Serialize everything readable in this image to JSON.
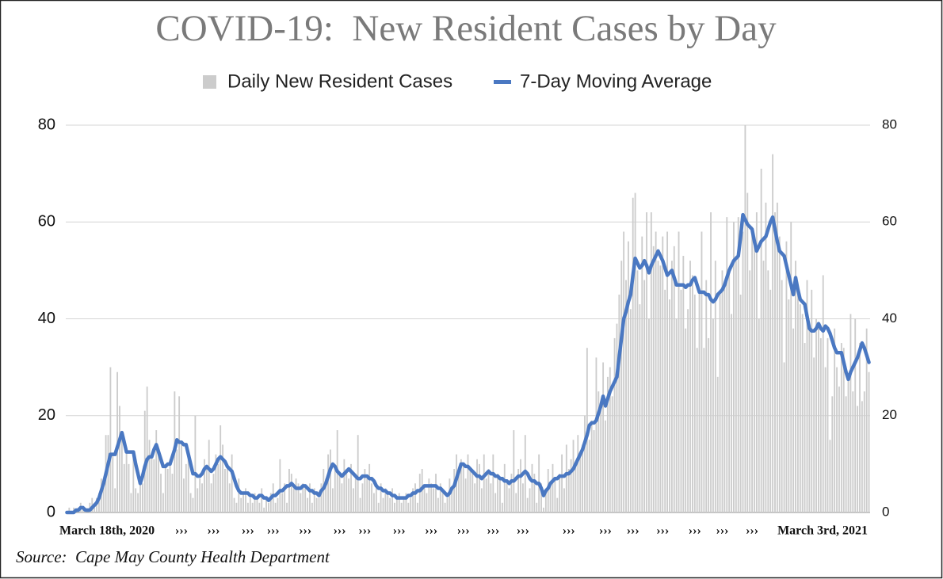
{
  "chart_data": {
    "type": "bar-line",
    "title": "COVID-19:  New Resident Cases by Day",
    "source": "Source:  Cape May County Health Department",
    "categories": [
      "March 18th, 2020",
      null,
      null,
      null,
      null,
      null,
      null,
      null,
      null,
      null,
      null,
      null,
      null,
      null,
      null,
      null,
      null,
      null,
      null,
      null,
      null,
      null,
      null,
      null,
      null,
      null,
      null,
      null,
      null,
      null,
      null,
      null,
      null,
      null,
      null,
      null,
      null,
      null,
      null,
      null,
      null,
      null,
      null,
      null,
      null,
      null,
      null,
      null,
      null,
      null,
      "›››",
      null,
      null,
      null,
      null,
      null,
      null,
      null,
      null,
      null,
      null,
      null,
      null,
      null,
      "›››",
      null,
      null,
      null,
      null,
      null,
      null,
      null,
      null,
      null,
      null,
      null,
      null,
      null,
      null,
      "›››",
      null,
      null,
      null,
      null,
      null,
      null,
      null,
      null,
      null,
      null,
      "›››",
      null,
      null,
      null,
      null,
      null,
      null,
      null,
      null,
      null,
      null,
      null,
      null,
      null,
      "›››",
      null,
      null,
      null,
      null,
      null,
      null,
      null,
      null,
      null,
      null,
      null,
      null,
      null,
      null,
      "›››",
      null,
      null,
      null,
      null,
      null,
      null,
      null,
      null,
      null,
      null,
      "›››",
      null,
      null,
      null,
      null,
      null,
      null,
      null,
      null,
      null,
      null,
      null,
      null,
      null,
      null,
      "›››",
      null,
      null,
      null,
      null,
      null,
      null,
      null,
      null,
      null,
      null,
      null,
      null,
      null,
      "›››",
      null,
      null,
      null,
      null,
      null,
      null,
      null,
      null,
      null,
      null,
      null,
      null,
      null,
      "›››",
      null,
      null,
      null,
      null,
      null,
      null,
      null,
      null,
      null,
      null,
      null,
      null,
      "›››",
      null,
      null,
      null,
      null,
      null,
      null,
      null,
      null,
      null,
      null,
      null,
      null,
      "›››",
      null,
      null,
      null,
      null,
      null,
      null,
      null,
      null,
      null,
      null,
      null,
      null,
      null,
      null,
      null,
      null,
      null,
      null,
      null,
      "›››",
      null,
      null,
      null,
      null,
      null,
      null,
      null,
      null,
      null,
      null,
      null,
      null,
      null,
      null,
      null,
      "›››",
      null,
      null,
      null,
      null,
      null,
      null,
      null,
      null,
      null,
      null,
      null,
      "›››",
      null,
      null,
      null,
      null,
      null,
      null,
      null,
      null,
      null,
      null,
      null,
      null,
      "›››",
      null,
      null,
      null,
      null,
      null,
      null,
      null,
      null,
      null,
      null,
      null,
      null,
      null,
      "›››",
      null,
      null,
      null,
      null,
      null,
      null,
      null,
      null,
      null,
      null,
      null,
      "›››",
      null,
      null,
      null,
      null,
      null,
      null,
      null,
      null,
      null,
      null,
      null,
      null,
      "›››",
      null,
      null,
      null,
      null,
      null,
      null,
      null,
      null,
      null,
      null,
      null,
      null,
      null,
      null,
      null,
      null,
      null,
      null,
      null,
      null,
      null,
      null,
      null,
      null,
      null,
      null,
      null,
      null,
      null,
      null,
      null,
      null,
      null,
      null,
      null,
      null,
      null,
      null,
      null,
      null,
      null,
      null,
      null,
      null,
      null,
      null,
      null,
      null,
      null,
      null,
      "March 3rd, 2021"
    ],
    "series": [
      {
        "name": "Daily New Resident Cases",
        "kind": "bar",
        "color": "#cccccc",
        "values": [
          0,
          1,
          0,
          1,
          0,
          0,
          2,
          1,
          1,
          0,
          2,
          3,
          1,
          3,
          4,
          7,
          6,
          16,
          16,
          30,
          12,
          5,
          29,
          22,
          15,
          10,
          13,
          10,
          4,
          12,
          5,
          4,
          7,
          6,
          21,
          26,
          15,
          12,
          11,
          17,
          13,
          8,
          4,
          10,
          9,
          11,
          8,
          25,
          13,
          24,
          14,
          7,
          10,
          12,
          4,
          3,
          20,
          5,
          7,
          6,
          11,
          9,
          15,
          6,
          8,
          12,
          10,
          18,
          14,
          9,
          10,
          6,
          12,
          3,
          2,
          7,
          3,
          4,
          5,
          2,
          3,
          2,
          4,
          3,
          2,
          5,
          1,
          3,
          2,
          4,
          6,
          2,
          3,
          11,
          4,
          6,
          2,
          9,
          8,
          5,
          7,
          6,
          4,
          6,
          5,
          3,
          6,
          2,
          5,
          3,
          3,
          6,
          9,
          7,
          12,
          13,
          5,
          9,
          17,
          8,
          6,
          11,
          9,
          7,
          10,
          5,
          8,
          16,
          3,
          6,
          9,
          7,
          10,
          6,
          4,
          5,
          2,
          6,
          3,
          5,
          4,
          3,
          5,
          2,
          3,
          4,
          2,
          3,
          4,
          2,
          3,
          5,
          6,
          2,
          8,
          9,
          5,
          4,
          7,
          6,
          5,
          8,
          3,
          6,
          4,
          2,
          3,
          7,
          5,
          9,
          12,
          8,
          11,
          10,
          7,
          12,
          9,
          8,
          6,
          11,
          10,
          5,
          12,
          7,
          9,
          6,
          12,
          4,
          8,
          7,
          2,
          10,
          6,
          5,
          8,
          17,
          4,
          9,
          11,
          6,
          16,
          3,
          5,
          10,
          8,
          2,
          12,
          6,
          1,
          4,
          9,
          6,
          10,
          7,
          3,
          8,
          12,
          5,
          14,
          9,
          11,
          15,
          10,
          16,
          12,
          14,
          20,
          34,
          15,
          19,
          17,
          32,
          25,
          22,
          31,
          19,
          28,
          30,
          24,
          36,
          39,
          45,
          52,
          58,
          48,
          56,
          42,
          65,
          66,
          50,
          43,
          57,
          48,
          62,
          40,
          62,
          55,
          58,
          52,
          51,
          57,
          46,
          58,
          44,
          52,
          55,
          40,
          58,
          46,
          53,
          38,
          42,
          52,
          49,
          45,
          34,
          46,
          58,
          34,
          48,
          36,
          62,
          40,
          52,
          28,
          45,
          50,
          47,
          61,
          50,
          41,
          60,
          52,
          61,
          45,
          58,
          80,
          66,
          50,
          59,
          55,
          62,
          40,
          71,
          52,
          64,
          50,
          46,
          74,
          62,
          64,
          57,
          48,
          31,
          56,
          44,
          60,
          38,
          52,
          46,
          43,
          41,
          35,
          48,
          39,
          46,
          32,
          40,
          38,
          36,
          49,
          30,
          36,
          15,
          24,
          38,
          30,
          26,
          35,
          34,
          24,
          28,
          41,
          25,
          40,
          22,
          35,
          23,
          25,
          38,
          29
        ]
      },
      {
        "name": "7-Day Moving Average",
        "kind": "line",
        "color": "#4a78c2",
        "values": [
          0,
          0,
          0,
          0,
          0.5,
          0.5,
          1,
          1,
          0.5,
          0.5,
          0.5,
          1,
          1.5,
          2,
          3,
          4.5,
          6,
          8,
          10,
          12,
          12,
          12,
          13.5,
          15,
          16.5,
          14.5,
          12.5,
          12.5,
          12.5,
          12.5,
          10,
          8,
          6,
          7.5,
          9.5,
          11,
          11.5,
          11.5,
          13,
          14,
          12.5,
          11,
          9.5,
          9.5,
          10,
          10,
          11.5,
          13,
          15,
          14.5,
          14.5,
          14,
          14,
          12,
          10,
          8,
          8,
          7.5,
          7.5,
          8,
          9,
          9.5,
          9,
          8.5,
          9,
          10,
          11,
          11.5,
          11,
          10.5,
          9.5,
          9,
          8.5,
          7,
          5.5,
          4.5,
          4,
          4,
          4,
          4,
          3.5,
          3.5,
          3,
          3,
          3.5,
          3.5,
          3,
          3,
          2.5,
          3,
          3.5,
          3.5,
          4,
          4.5,
          4.5,
          5,
          5.5,
          5.5,
          6,
          5.5,
          5,
          5,
          5,
          5.5,
          5.5,
          5,
          4.5,
          4.5,
          4,
          4,
          3.5,
          4.5,
          5,
          6,
          7.5,
          9,
          10,
          9.5,
          8.5,
          8,
          7.5,
          8,
          8.5,
          9,
          8.5,
          8,
          7.5,
          7,
          7,
          7.5,
          7.5,
          7.5,
          7,
          7,
          6.5,
          5.5,
          5,
          5,
          4.5,
          4.5,
          4,
          4,
          3.5,
          3.5,
          3,
          3,
          3,
          3,
          3,
          3.5,
          3.5,
          4,
          4,
          4.5,
          4.5,
          5,
          5.5,
          5.5,
          5.5,
          5.5,
          5.5,
          5.5,
          5,
          5,
          4.5,
          4,
          3.5,
          4,
          5,
          5.5,
          7,
          8.5,
          10,
          10,
          9.5,
          9.5,
          9,
          8.5,
          8,
          7.5,
          7.5,
          7,
          7.5,
          8,
          8.5,
          8,
          8,
          7.5,
          7.5,
          7,
          7,
          6.5,
          6.5,
          6,
          6.5,
          6.5,
          7,
          7.5,
          7.5,
          8,
          8.5,
          8,
          7,
          6.5,
          6.5,
          6,
          6,
          5,
          3.5,
          4.5,
          5,
          6,
          6.5,
          7,
          7,
          7.5,
          7.5,
          7.5,
          8,
          8,
          8.5,
          9,
          10,
          11,
          12,
          13,
          14.5,
          16,
          18,
          18.5,
          18.5,
          19,
          20.5,
          22,
          24,
          22,
          23.5,
          25,
          26,
          27,
          28,
          32,
          36,
          40,
          41.5,
          43.5,
          45,
          49,
          52.5,
          51.5,
          50.5,
          51,
          52,
          51,
          49.5,
          51,
          52,
          53,
          54,
          53,
          52,
          50.5,
          49,
          49.5,
          50,
          48.5,
          47,
          47,
          47,
          47,
          46.5,
          47,
          47,
          48,
          48.5,
          47,
          45.5,
          45.5,
          45.5,
          45,
          45,
          44,
          43.5,
          44,
          45,
          45.5,
          46,
          47,
          48.5,
          50,
          51,
          52,
          52.5,
          53,
          57,
          61.5,
          60.5,
          59.5,
          59,
          58.5,
          56,
          54,
          55,
          56,
          56.5,
          57,
          58.5,
          60,
          61,
          58.5,
          56,
          54,
          53.5,
          53,
          51,
          49,
          47,
          45,
          48.5,
          46,
          44,
          43.5,
          43,
          40.5,
          38,
          37.5,
          37.5,
          38,
          39,
          38,
          37.5,
          38.5,
          38,
          37,
          35.5,
          34,
          33,
          33,
          33,
          31,
          29,
          27.5,
          29,
          30,
          31,
          32,
          33.5,
          35,
          34,
          32.5,
          31
        ]
      }
    ],
    "ylim": [
      0,
      80
    ],
    "yticks": [
      0,
      20,
      40,
      60,
      80
    ],
    "y2lim": [
      0,
      80
    ],
    "y2ticks": [
      0,
      20,
      40,
      60,
      80
    ],
    "grid": true,
    "legend": "top"
  }
}
